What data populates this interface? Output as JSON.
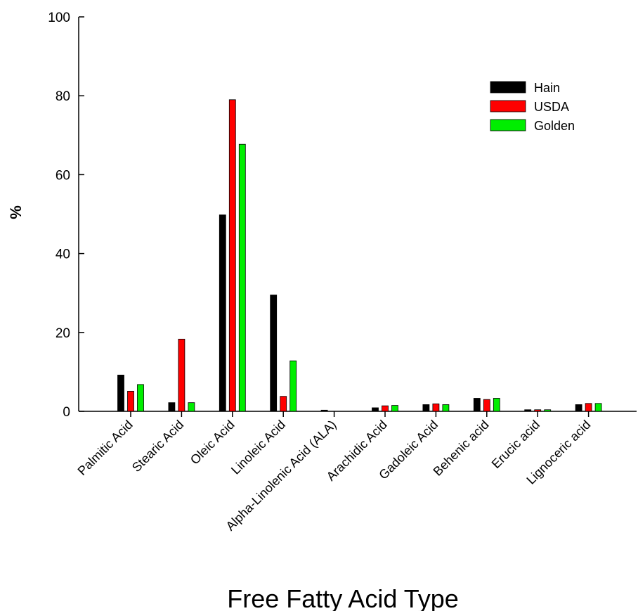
{
  "chart_data": {
    "type": "bar",
    "title": "",
    "xlabel": "Free Fatty Acid Type",
    "ylabel": "%",
    "ylim": [
      0,
      100
    ],
    "yticks": [
      0,
      20,
      40,
      60,
      80,
      100
    ],
    "grid": false,
    "legend_position": "top-right",
    "categories": [
      "Palmitic Acid",
      "Stearic Acid",
      "Oleic Acid",
      "Linoleic Acid",
      "Alpha-Linolenic Acid (ALA)",
      "Arachidic Acid",
      "Gadoleic Acid",
      "Behenic acid",
      "Erucic acid",
      "Lignoceric acid"
    ],
    "series": [
      {
        "name": "Hain",
        "color": "#000000",
        "values": [
          9.2,
          2.2,
          49.8,
          29.5,
          0.3,
          0.9,
          1.7,
          3.3,
          0.4,
          1.7
        ]
      },
      {
        "name": "USDA",
        "color": "#ff0000",
        "values": [
          5.1,
          18.3,
          79.0,
          3.8,
          0.0,
          1.4,
          1.9,
          3.0,
          0.4,
          2.0
        ]
      },
      {
        "name": "Golden",
        "color": "#00ee00",
        "values": [
          6.8,
          2.2,
          67.7,
          12.8,
          0.0,
          1.5,
          1.7,
          3.3,
          0.4,
          2.0
        ]
      }
    ]
  }
}
